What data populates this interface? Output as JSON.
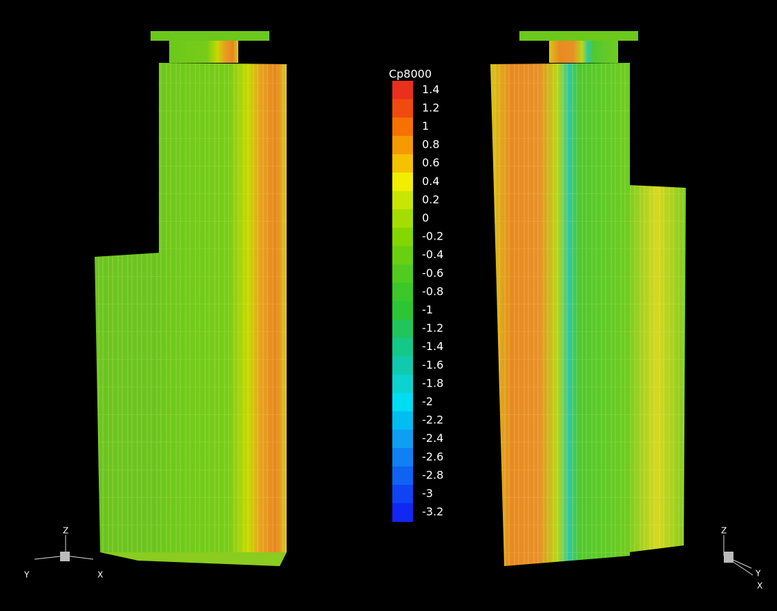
{
  "legend": {
    "title": "Cp8000",
    "levels": [
      1.4,
      1.2,
      1,
      0.8,
      0.6,
      0.4,
      0.2,
      0,
      -0.2,
      -0.4,
      -0.6,
      -0.8,
      -1,
      -1.2,
      -1.4,
      -1.6,
      -1.8,
      -2,
      -2.2,
      -2.4,
      -2.6,
      -2.8,
      -3,
      -3.2
    ],
    "colors": [
      "#e8301c",
      "#f04a10",
      "#f57200",
      "#f59a00",
      "#f5c200",
      "#f2ee00",
      "#c8e600",
      "#a4de00",
      "#84d600",
      "#68d010",
      "#50cc20",
      "#3cc828",
      "#2cc634",
      "#20c65c",
      "#14c888",
      "#10caae",
      "#0cd2d0",
      "#00dcf2",
      "#00bef2",
      "#109ef2",
      "#1080f2",
      "#1062f2",
      "#1044f2",
      "#1028f2"
    ]
  },
  "triads": [
    {
      "z": "Z",
      "y": "Y",
      "x": "X"
    },
    {
      "z": "Z",
      "y": "Y",
      "x": "X"
    }
  ]
}
